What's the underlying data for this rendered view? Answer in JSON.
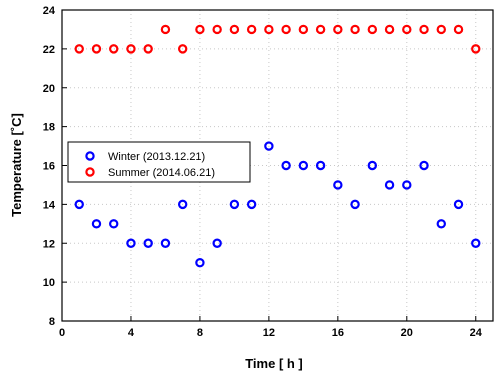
{
  "chart_data": {
    "type": "scatter",
    "xlabel": "Time [ h ]",
    "ylabel": "Temperature [˚C]",
    "xlim": [
      0,
      25
    ],
    "ylim": [
      8,
      24
    ],
    "xticks": [
      0,
      4,
      8,
      12,
      16,
      20,
      24
    ],
    "yticks": [
      8,
      10,
      12,
      14,
      16,
      18,
      20,
      22,
      24
    ],
    "grid": true,
    "legend_position": "center-left",
    "series": [
      {
        "name": "Winter (2013.12.21)",
        "color": "#0000ff",
        "marker": "open-circle",
        "x": [
          1,
          2,
          3,
          4,
          5,
          6,
          7,
          8,
          9,
          10,
          11,
          12,
          13,
          14,
          15,
          16,
          17,
          18,
          19,
          20,
          21,
          22,
          23,
          24
        ],
        "y": [
          14,
          13,
          13,
          12,
          12,
          12,
          14,
          11,
          12,
          14,
          14,
          17,
          16,
          16,
          16,
          15,
          14,
          16,
          15,
          15,
          16,
          13,
          14,
          12
        ]
      },
      {
        "name": "Summer (2014.06.21)",
        "color": "#ff0000",
        "marker": "open-circle",
        "x": [
          1,
          2,
          3,
          4,
          5,
          6,
          7,
          8,
          9,
          10,
          11,
          12,
          13,
          14,
          15,
          16,
          17,
          18,
          19,
          20,
          21,
          22,
          23,
          24
        ],
        "y": [
          22,
          22,
          22,
          22,
          22,
          23,
          22,
          23,
          23,
          23,
          23,
          23,
          23,
          23,
          23,
          23,
          23,
          23,
          23,
          23,
          23,
          23,
          23,
          22
        ]
      }
    ]
  }
}
